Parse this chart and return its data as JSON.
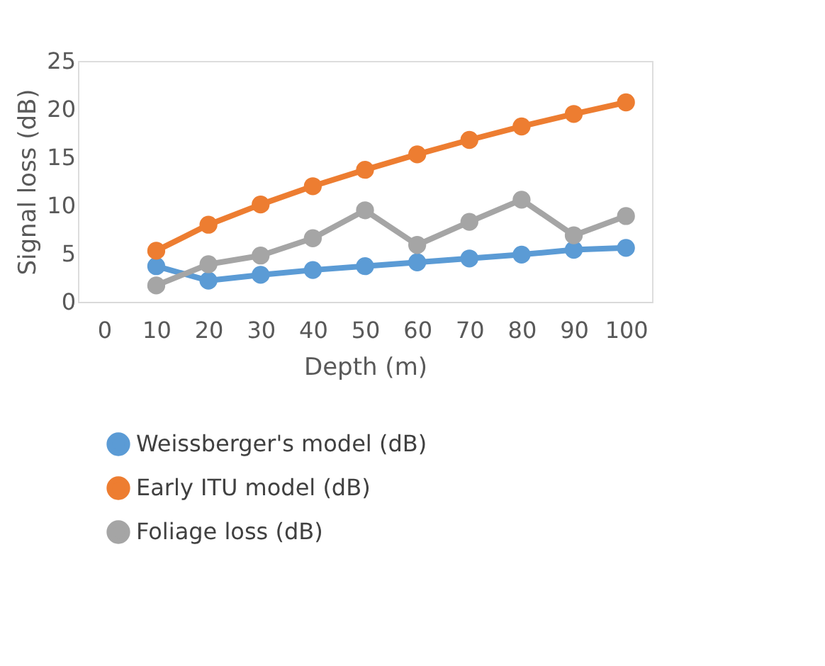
{
  "chart_data": {
    "type": "line",
    "xlabel": "Depth (m)",
    "ylabel": "Signal loss (dB)",
    "categories": [
      "0",
      "10",
      "20",
      "30",
      "40",
      "50",
      "60",
      "70",
      "80",
      "90",
      "100"
    ],
    "series": [
      {
        "name": "Weissberger's model (dB)",
        "color": "#5b9bd5",
        "values": [
          null,
          3.7,
          2.2,
          2.8,
          3.3,
          3.7,
          4.1,
          4.5,
          4.9,
          5.4,
          5.6
        ]
      },
      {
        "name": "Early ITU model (dB)",
        "color": "#ed7d31",
        "values": [
          null,
          5.3,
          8.0,
          10.1,
          12.0,
          13.7,
          15.3,
          16.8,
          18.2,
          19.5,
          20.7
        ]
      },
      {
        "name": "Foliage loss (dB)",
        "color": "#a5a5a5",
        "values": [
          null,
          1.7,
          3.9,
          4.8,
          6.6,
          9.5,
          5.9,
          8.3,
          10.6,
          6.9,
          8.9
        ]
      }
    ],
    "ylim": [
      0,
      25
    ],
    "yticks": [
      0,
      5,
      10,
      15,
      20,
      25
    ],
    "grid": false,
    "legend": "bottom",
    "marker": "circle",
    "line_style": "solid"
  }
}
